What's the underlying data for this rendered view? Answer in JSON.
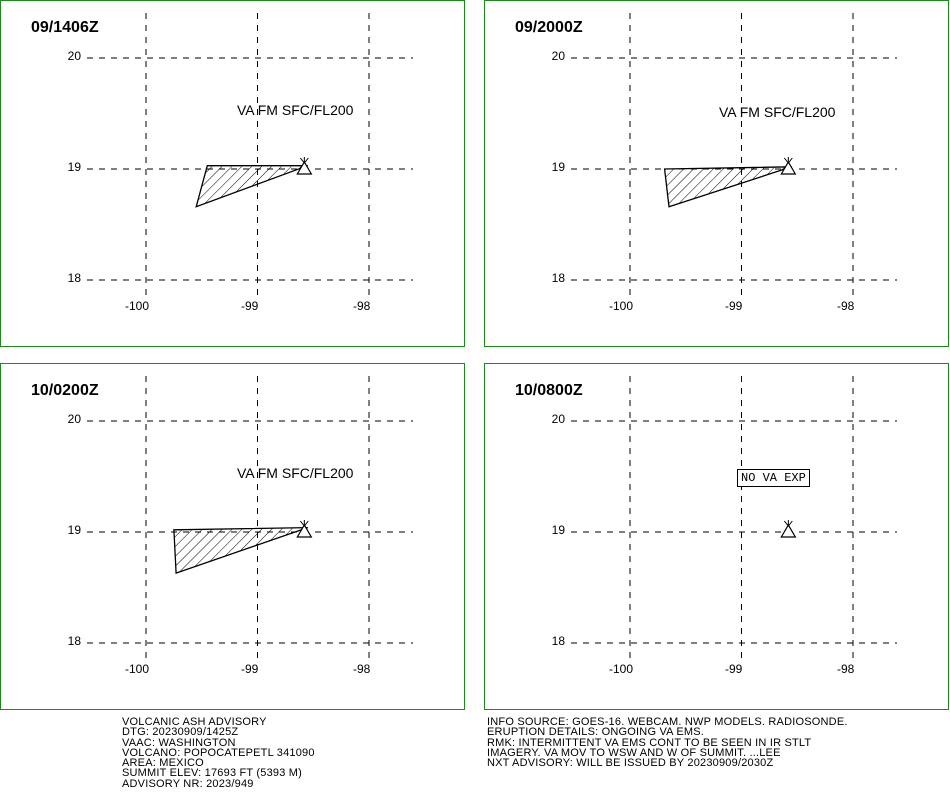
{
  "panels": [
    {
      "title": "09/1406Z",
      "va_label": "VA FM SFC/FL200",
      "box": null,
      "polygon": [
        [
          -99.45,
          19.03
        ],
        [
          -98.55,
          19.03
        ],
        [
          -99.55,
          18.66
        ]
      ]
    },
    {
      "title": "09/2000Z",
      "va_label": "VA FM SFC/FL200",
      "box": null,
      "polygon": [
        [
          -99.69,
          19.0
        ],
        [
          -98.55,
          19.02
        ],
        [
          -99.65,
          18.66
        ]
      ]
    },
    {
      "title": "10/0200Z",
      "va_label": "VA FM SFC/FL200",
      "box": null,
      "polygon": [
        [
          -99.75,
          19.02
        ],
        [
          -98.55,
          19.04
        ],
        [
          -99.73,
          18.63
        ]
      ]
    },
    {
      "title": "10/0800Z",
      "va_label": null,
      "box": "NO VA EXP",
      "polygon": null
    }
  ],
  "map": {
    "lat_ticks": [
      "20",
      "19",
      "18"
    ],
    "lon_ticks": [
      "-100",
      "-99",
      "-98"
    ],
    "volcano": {
      "lon": -98.58,
      "lat": 19.0
    },
    "grid_color": "#000000",
    "border_color": "#1a8a1a"
  },
  "advisory_left": [
    "VOLCANIC ASH ADVISORY",
    "DTG: 20230909/1425Z",
    "VAAC: WASHINGTON",
    "VOLCANO: POPOCATEPETL 341090",
    "AREA: MEXICO",
    "SUMMIT ELEV: 17693 FT (5393 M)",
    "ADVISORY NR: 2023/949"
  ],
  "advisory_right": [
    "INFO SOURCE: GOES-16. WEBCAM. NWP MODELS. RADIOSONDE.",
    "ERUPTION DETAILS: ONGOING VA EMS.",
    "RMK: INTERMITTENT VA EMS CONT TO BE SEEN IN IR STLT",
    "IMAGERY. VA MOV TO WSW AND W OF SUMMIT. ...LEE",
    "NXT ADVISORY: WILL BE ISSUED BY 20230909/2030Z"
  ]
}
